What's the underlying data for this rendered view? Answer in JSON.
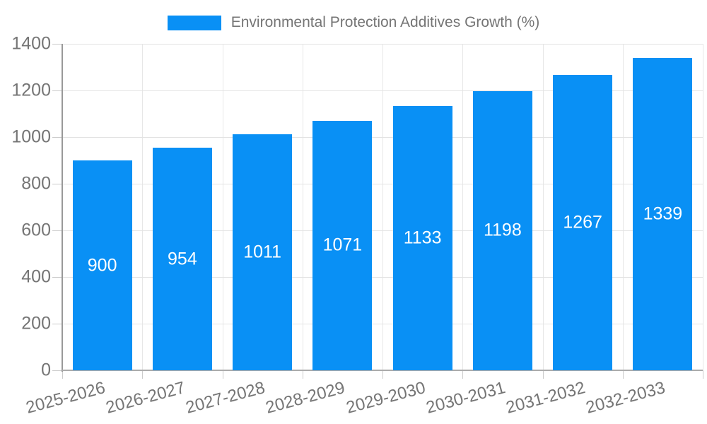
{
  "legend": {
    "label": "Environmental Protection Additives Growth (%)"
  },
  "chart_data": {
    "type": "bar",
    "title": "Environmental Protection Additives Growth (%)",
    "legend_position": "top",
    "categories": [
      "2025-2026",
      "2026-2027",
      "2027-2028",
      "2028-2029",
      "2029-2030",
      "2030-2031",
      "2031-2032",
      "2032-2033"
    ],
    "values": [
      900,
      954,
      1011,
      1071,
      1133,
      1198,
      1267,
      1339
    ],
    "xlabel": "",
    "ylabel": "",
    "ylim": [
      0,
      1400
    ],
    "yticks": [
      0,
      200,
      400,
      600,
      800,
      1000,
      1200,
      1400
    ],
    "grid": true,
    "value_labels": "inside-center",
    "colors": {
      "bar": "#0990F5",
      "axis_text": "#757575",
      "value_text": "#ffffff",
      "grid_line": "#e3e3e3",
      "axis_line": "#a6a6a6",
      "background": "#ffffff"
    }
  }
}
